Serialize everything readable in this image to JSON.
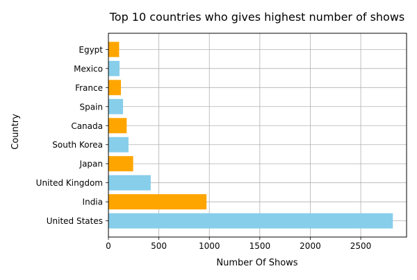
{
  "chart_data": {
    "type": "bar",
    "orientation": "horizontal",
    "title": "Top 10 countries who gives highest number of shows",
    "xlabel": "Number Of Shows",
    "ylabel": "Country",
    "categories": [
      "United States",
      "India",
      "United Kingdom",
      "Japan",
      "South Korea",
      "Canada",
      "Spain",
      "France",
      "Mexico",
      "Egypt"
    ],
    "values": [
      2818,
      972,
      419,
      245,
      199,
      181,
      145,
      124,
      110,
      106
    ],
    "bar_colors": [
      "#87ceeb",
      "#ffa500",
      "#87ceeb",
      "#ffa500",
      "#87ceeb",
      "#ffa500",
      "#87ceeb",
      "#ffa500",
      "#87ceeb",
      "#ffa500"
    ],
    "xlim": [
      0,
      2954
    ],
    "xticks": [
      0,
      500,
      1000,
      1500,
      2000,
      2500
    ],
    "grid": true
  }
}
